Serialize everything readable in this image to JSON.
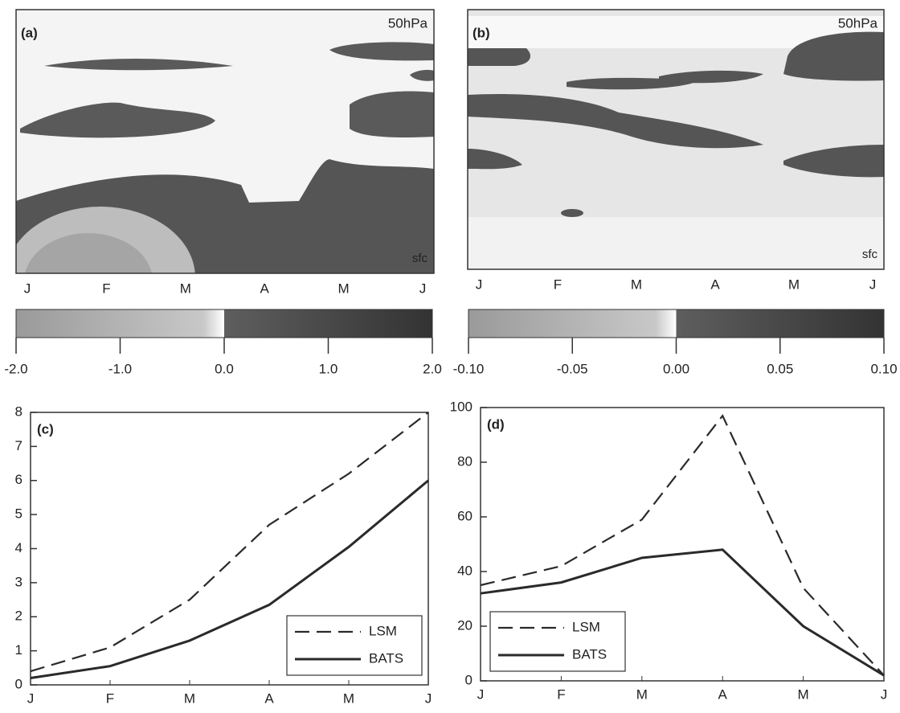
{
  "chart_data": [
    {
      "type": "heatmap",
      "label": "(a)",
      "top_label": "50hPa",
      "bottom_label": "sfc",
      "categories": [
        "J",
        "F",
        "M",
        "A",
        "M",
        "J"
      ],
      "colorbar": {
        "lim": [
          -2,
          2
        ],
        "ticks": [
          {
            "value": -2,
            "label": "-2.0"
          },
          {
            "value": -1,
            "label": "-1.0"
          },
          {
            "value": 0,
            "label": "0.0"
          },
          {
            "value": 1,
            "label": "1.0"
          },
          {
            "value": 2,
            "label": "2.0"
          }
        ]
      }
    },
    {
      "type": "heatmap",
      "label": "(b)",
      "top_label": "50hPa",
      "bottom_label": "sfc",
      "categories": [
        "J",
        "F",
        "M",
        "A",
        "M",
        "J"
      ],
      "colorbar": {
        "lim": [
          -0.1,
          0.1
        ],
        "ticks": [
          {
            "value": -0.1,
            "label": "-0.10"
          },
          {
            "value": -0.05,
            "label": "-0.05"
          },
          {
            "value": 0,
            "label": "0.00"
          },
          {
            "value": 0.05,
            "label": "0.05"
          },
          {
            "value": 0.1,
            "label": "0.10"
          }
        ]
      }
    },
    {
      "type": "line",
      "label": "(c)",
      "categories": [
        "J",
        "F",
        "M",
        "A",
        "M",
        "J"
      ],
      "series": [
        {
          "name": "LSM",
          "color": "#2a2a2a",
          "dash": "dashed",
          "values": [
            0.4,
            1.1,
            2.5,
            4.7,
            6.2,
            8.0
          ]
        },
        {
          "name": "BATS",
          "color": "#2a2a2a",
          "dash": "solid",
          "values": [
            0.2,
            0.55,
            1.3,
            2.35,
            4.05,
            6.0
          ]
        }
      ],
      "ylim": [
        0,
        8
      ],
      "yticks": [
        0,
        1,
        2,
        3,
        4,
        5,
        6,
        7,
        8
      ],
      "legend": "lower right"
    },
    {
      "type": "line",
      "label": "(d)",
      "categories": [
        "J",
        "F",
        "M",
        "A",
        "M",
        "J"
      ],
      "series": [
        {
          "name": "LSM",
          "color": "#2a2a2a",
          "dash": "dashed",
          "values": [
            35,
            42,
            59,
            97,
            34,
            2
          ]
        },
        {
          "name": "BATS",
          "color": "#2a2a2a",
          "dash": "solid",
          "values": [
            32,
            36,
            45,
            48,
            20,
            2
          ]
        }
      ],
      "ylim": [
        0,
        100
      ],
      "yticks": [
        0,
        20,
        40,
        60,
        80,
        100
      ],
      "legend": "lower left"
    }
  ]
}
